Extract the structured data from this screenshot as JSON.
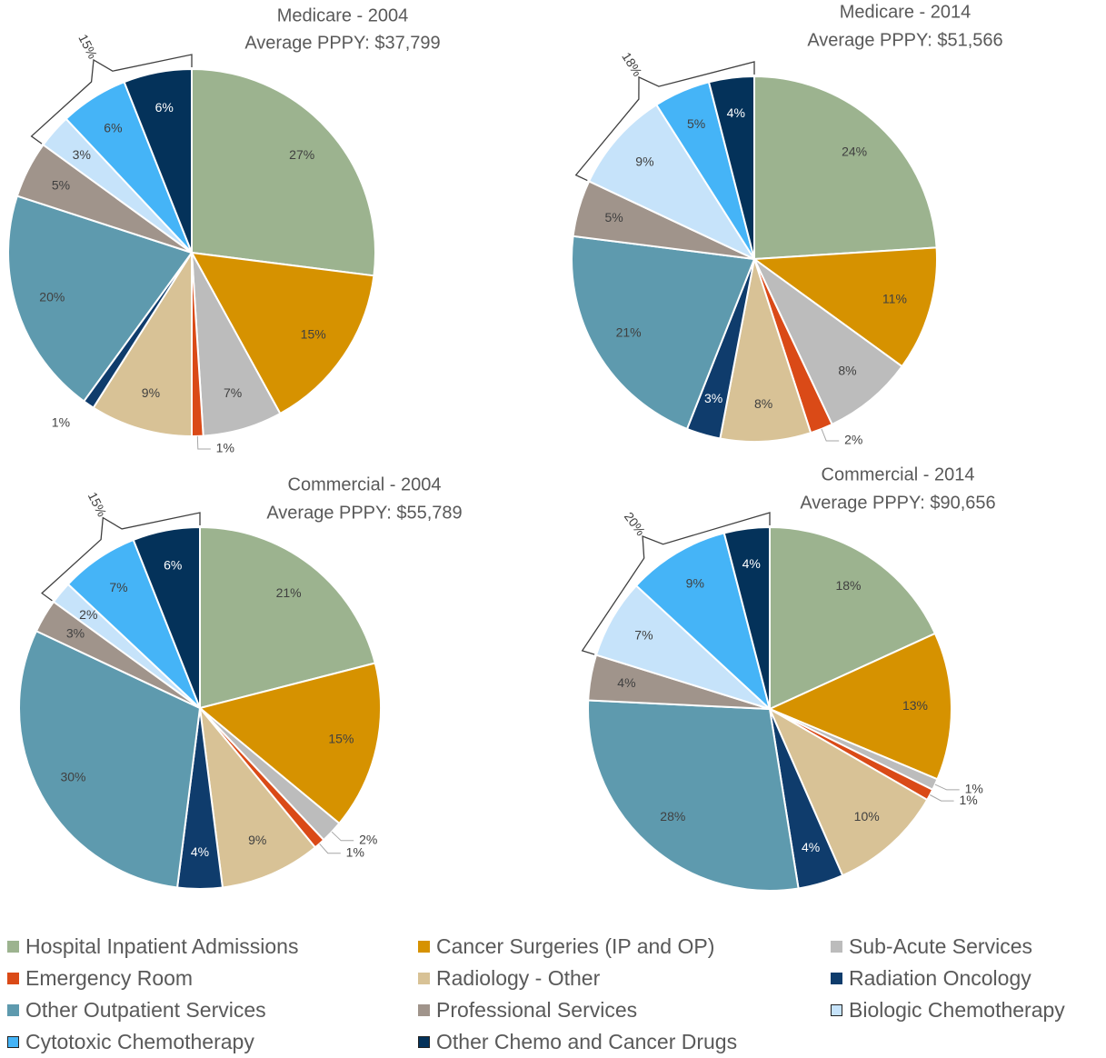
{
  "chart_data": [
    {
      "type": "pie",
      "title": "Medicare - 2004",
      "subtitle": "Average PPPY: $37,799",
      "bracket_label": "15%",
      "slices": [
        {
          "category": "Hospital Inpatient Admissions",
          "value": 27,
          "label": "27%"
        },
        {
          "category": "Cancer Surgeries (IP and OP)",
          "value": 15,
          "label": "15%"
        },
        {
          "category": "Sub-Acute Services",
          "value": 7,
          "label": "7%"
        },
        {
          "category": "Emergency Room",
          "value": 1,
          "label": "1%"
        },
        {
          "category": "Radiology - Other",
          "value": 9,
          "label": "9%"
        },
        {
          "category": "Radiation Oncology",
          "value": 1,
          "label": "1%"
        },
        {
          "category": "Other Outpatient Services",
          "value": 20,
          "label": "20%"
        },
        {
          "category": "Professional Services",
          "value": 5,
          "label": "5%"
        },
        {
          "category": "Biologic Chemotherapy",
          "value": 3,
          "label": "3%"
        },
        {
          "category": "Cytotoxic Chemotherapy",
          "value": 6,
          "label": "6%"
        },
        {
          "category": "Other Chemo and Cancer Drugs",
          "value": 6,
          "label": "6%"
        }
      ]
    },
    {
      "type": "pie",
      "title": "Medicare - 2014",
      "subtitle": "Average PPPY: $51,566",
      "bracket_label": "18%",
      "slices": [
        {
          "category": "Hospital Inpatient Admissions",
          "value": 24,
          "label": "24%"
        },
        {
          "category": "Cancer Surgeries (IP and OP)",
          "value": 11,
          "label": "11%"
        },
        {
          "category": "Sub-Acute Services",
          "value": 8,
          "label": "8%"
        },
        {
          "category": "Emergency Room",
          "value": 2,
          "label": "2%"
        },
        {
          "category": "Radiology - Other",
          "value": 8,
          "label": "8%"
        },
        {
          "category": "Radiation Oncology",
          "value": 3,
          "label": "3%"
        },
        {
          "category": "Other Outpatient Services",
          "value": 21,
          "label": "21%"
        },
        {
          "category": "Professional Services",
          "value": 5,
          "label": "5%"
        },
        {
          "category": "Biologic Chemotherapy",
          "value": 9,
          "label": "9%"
        },
        {
          "category": "Cytotoxic Chemotherapy",
          "value": 5,
          "label": "5%"
        },
        {
          "category": "Other Chemo and Cancer Drugs",
          "value": 4,
          "label": "4%"
        }
      ]
    },
    {
      "type": "pie",
      "title": "Commercial - 2004",
      "subtitle": "Average PPPY: $55,789",
      "bracket_label": "15%",
      "slices": [
        {
          "category": "Hospital Inpatient Admissions",
          "value": 21,
          "label": "21%"
        },
        {
          "category": "Cancer Surgeries (IP and OP)",
          "value": 15,
          "label": "15%"
        },
        {
          "category": "Sub-Acute Services",
          "value": 2,
          "label": "2%"
        },
        {
          "category": "Emergency Room",
          "value": 1,
          "label": "1%"
        },
        {
          "category": "Radiology - Other",
          "value": 9,
          "label": "9%"
        },
        {
          "category": "Radiation Oncology",
          "value": 4,
          "label": "4%"
        },
        {
          "category": "Other Outpatient Services",
          "value": 30,
          "label": "30%"
        },
        {
          "category": "Professional Services",
          "value": 3,
          "label": "3%"
        },
        {
          "category": "Biologic Chemotherapy",
          "value": 2,
          "label": "2%"
        },
        {
          "category": "Cytotoxic Chemotherapy",
          "value": 7,
          "label": "7%"
        },
        {
          "category": "Other Chemo and Cancer Drugs",
          "value": 6,
          "label": "6%"
        }
      ]
    },
    {
      "type": "pie",
      "title": "Commercial - 2014",
      "subtitle": "Average PPPY: $90,656",
      "bracket_label": "20%",
      "slices": [
        {
          "category": "Hospital Inpatient Admissions",
          "value": 18,
          "label": "18%"
        },
        {
          "category": "Cancer Surgeries (IP and OP)",
          "value": 13,
          "label": "13%"
        },
        {
          "category": "Sub-Acute Services",
          "value": 1,
          "label": "1%"
        },
        {
          "category": "Emergency Room",
          "value": 1,
          "label": "1%"
        },
        {
          "category": "Radiology - Other",
          "value": 10,
          "label": "10%"
        },
        {
          "category": "Radiation Oncology",
          "value": 4,
          "label": "4%"
        },
        {
          "category": "Other Outpatient Services",
          "value": 28,
          "label": "28%"
        },
        {
          "category": "Professional Services",
          "value": 4,
          "label": "4%"
        },
        {
          "category": "Biologic Chemotherapy",
          "value": 7,
          "label": "7%"
        },
        {
          "category": "Cytotoxic Chemotherapy",
          "value": 9,
          "label": "9%"
        },
        {
          "category": "Other Chemo and Cancer Drugs",
          "value": 4,
          "label": "4%"
        }
      ]
    }
  ],
  "legend": [
    {
      "label": "Hospital Inpatient Admissions",
      "color": "#9cb38f"
    },
    {
      "label": "Cancer Surgeries (IP and OP)",
      "color": "#d69200"
    },
    {
      "label": "Sub-Acute Services",
      "color": "#bcbcbc"
    },
    {
      "label": "Emergency Room",
      "color": "#da4a17"
    },
    {
      "label": "Radiology - Other",
      "color": "#d8c296"
    },
    {
      "label": "Radiation Oncology",
      "color": "#0f3c6c"
    },
    {
      "label": "Other Outpatient Services",
      "color": "#5e9aae"
    },
    {
      "label": "Professional Services",
      "color": "#a0948b"
    },
    {
      "label": "Biologic Chemotherapy",
      "color": "#c6e3fa"
    },
    {
      "label": "Cytotoxic Chemotherapy",
      "color": "#45b4f7"
    },
    {
      "label": "Other Chemo and Cancer Drugs",
      "color": "#04325a"
    }
  ]
}
